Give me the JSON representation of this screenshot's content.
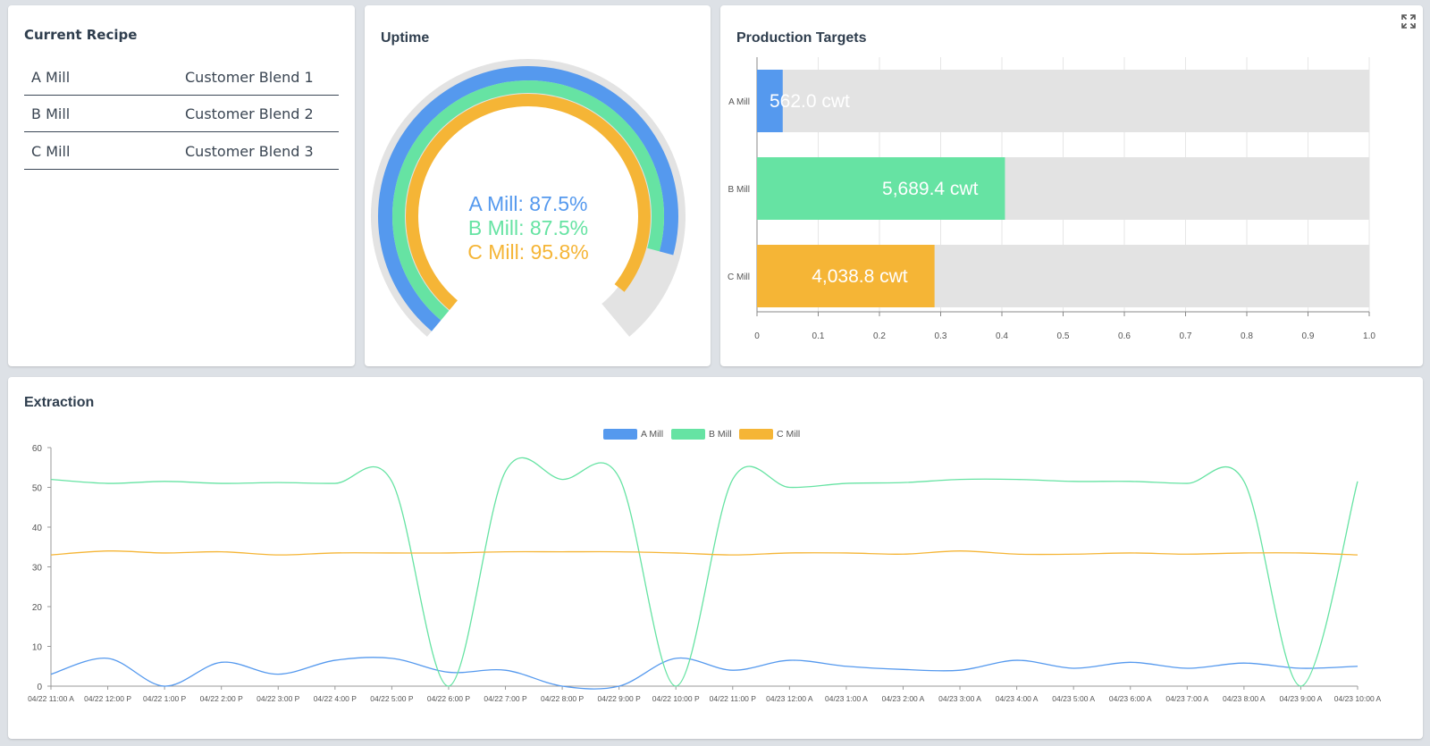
{
  "recipe": {
    "title": "Current Recipe",
    "rows": [
      {
        "mill": "A Mill",
        "blend": "Customer Blend 1"
      },
      {
        "mill": "B Mill",
        "blend": "Customer Blend 2"
      },
      {
        "mill": "C Mill",
        "blend": "Customer Blend 3"
      }
    ]
  },
  "uptime": {
    "title": "Uptime",
    "rings": [
      {
        "name": "A Mill",
        "label": "A Mill: 87.5%",
        "value": 87.5,
        "color": "#5599ee"
      },
      {
        "name": "B Mill",
        "label": "B Mill: 87.5%",
        "value": 87.5,
        "color": "#66e3a3"
      },
      {
        "name": "C Mill",
        "label": "C Mill: 95.8%",
        "value": 95.8,
        "color": "#f5b536"
      }
    ],
    "track_color": "#e3e3e3"
  },
  "targets": {
    "title": "Production Targets",
    "expand_icon": "expand-icon"
  },
  "extraction": {
    "title": "Extraction"
  },
  "chart_data": [
    {
      "type": "bar",
      "orientation": "horizontal",
      "title": "Production Targets",
      "categories": [
        "A Mill",
        "B Mill",
        "C Mill"
      ],
      "values": [
        0.042,
        0.405,
        0.29
      ],
      "data_labels": [
        "562.0 cwt",
        "5,689.4 cwt",
        "4,038.8 cwt"
      ],
      "colors": [
        "#5599ee",
        "#66e3a3",
        "#f5b536"
      ],
      "track_color": "#e3e3e3",
      "xlim": [
        0,
        1.0
      ],
      "xticks": [
        "0",
        "0.1",
        "0.2",
        "0.3",
        "0.4",
        "0.5",
        "0.6",
        "0.7",
        "0.8",
        "0.9",
        "1.0"
      ],
      "grid": true
    },
    {
      "type": "line",
      "title": "Extraction",
      "legend_position": "top",
      "ylim": [
        0,
        60
      ],
      "yticks": [
        0,
        10,
        20,
        30,
        40,
        50,
        60
      ],
      "grid": false,
      "x": [
        "04/22 11:00 A",
        "04/22 12:00 P",
        "04/22 1:00 P",
        "04/22 2:00 P",
        "04/22 3:00 P",
        "04/22 4:00 P",
        "04/22 5:00 P",
        "04/22 6:00 P",
        "04/22 7:00 P",
        "04/22 8:00 P",
        "04/22 9:00 P",
        "04/22 10:00 P",
        "04/22 11:00 P",
        "04/23 12:00 A",
        "04/23 1:00 A",
        "04/23 2:00 A",
        "04/23 3:00 A",
        "04/23 4:00 A",
        "04/23 5:00 A",
        "04/23 6:00 A",
        "04/23 7:00 A",
        "04/23 8:00 A",
        "04/23 9:00 A",
        "04/23 10:00 A"
      ],
      "series": [
        {
          "name": "A Mill",
          "color": "#5599ee",
          "values": [
            3,
            7,
            0,
            6,
            3,
            6.5,
            7,
            3.5,
            4,
            0,
            0,
            7,
            4,
            6.5,
            5,
            4.2,
            4,
            6.5,
            4.5,
            6,
            4.5,
            5.8,
            4.5,
            5
          ]
        },
        {
          "name": "B Mill",
          "color": "#66e3a3",
          "values": [
            52,
            51,
            51.5,
            51,
            51.2,
            51,
            51.5,
            0,
            54,
            52,
            52.5,
            0,
            52,
            50,
            51,
            51.2,
            52,
            52,
            51.5,
            51.5,
            51,
            51.5,
            0,
            51.5
          ]
        },
        {
          "name": "C Mill",
          "color": "#f5b536",
          "values": [
            33,
            34,
            33.5,
            33.8,
            33,
            33.5,
            33.5,
            33.5,
            33.8,
            33.8,
            33.8,
            33.5,
            33,
            33.5,
            33.5,
            33.2,
            34,
            33.2,
            33.2,
            33.5,
            33.2,
            33.5,
            33.5,
            33
          ]
        }
      ]
    }
  ]
}
